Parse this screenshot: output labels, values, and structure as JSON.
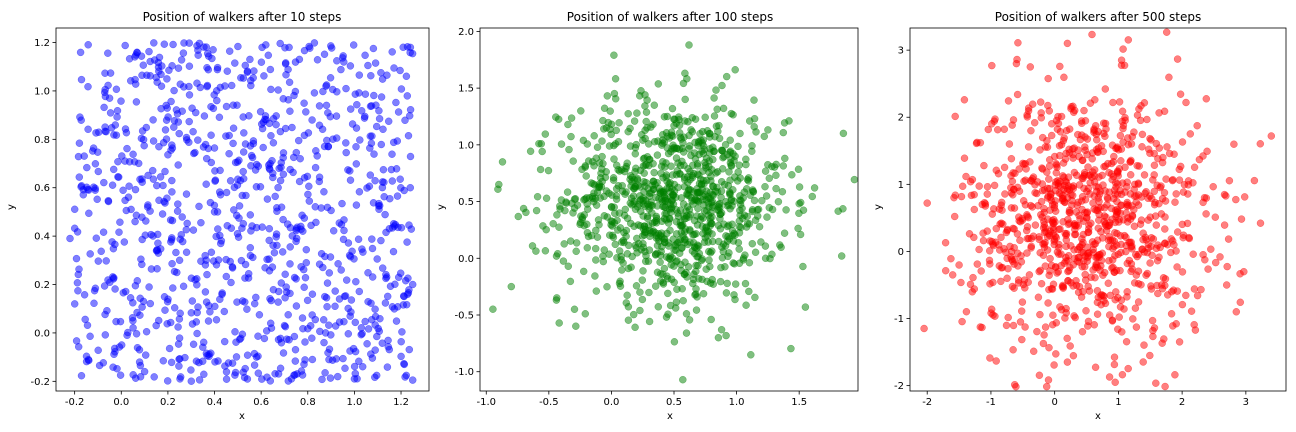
{
  "chart_data": [
    {
      "type": "scatter",
      "title": "Position of walkers after 10 steps",
      "xlabel": "x",
      "ylabel": "y",
      "xlim": [
        -0.28,
        1.32
      ],
      "ylim": [
        -0.24,
        1.26
      ],
      "xticks": [
        "-0.2",
        "0.0",
        "0.2",
        "0.4",
        "0.6",
        "0.8",
        "1.0",
        "1.2"
      ],
      "xtick_values": [
        -0.2,
        0.0,
        0.2,
        0.4,
        0.6,
        0.8,
        1.0,
        1.2
      ],
      "yticks": [
        "-0.2",
        "0.0",
        "0.2",
        "0.4",
        "0.6",
        "0.8",
        "1.0",
        "1.2"
      ],
      "ytick_values": [
        -0.2,
        0.0,
        0.2,
        0.4,
        0.6,
        0.8,
        1.0,
        1.2
      ],
      "color": "#0000ff",
      "alpha": 0.5,
      "grid": false,
      "n_points": 1000,
      "distribution": {
        "kind": "uniform",
        "x_range": [
          -0.2,
          1.25
        ],
        "y_range": [
          -0.2,
          1.2
        ]
      },
      "points": [
        [
          0.05,
          0.05
        ],
        [
          1.25,
          0.2
        ],
        [
          -0.22,
          0.39
        ],
        [
          0.62,
          1.19
        ],
        [
          0.72,
          1.18
        ],
        [
          1.24,
          0.6
        ],
        [
          -0.05,
          0.97
        ],
        [
          0.1,
          -0.16
        ],
        [
          0.73,
          -0.19
        ],
        [
          1.0,
          -0.19
        ],
        [
          -0.2,
          0.12
        ],
        [
          1.19,
          0.23
        ],
        [
          0.58,
          -0.1
        ],
        [
          0.82,
          0.16
        ],
        [
          0.25,
          0.3
        ],
        [
          0.4,
          0.5
        ]
      ]
    },
    {
      "type": "scatter",
      "title": "Position of walkers after 100 steps",
      "xlabel": "x",
      "ylabel": "y",
      "xlim": [
        -1.05,
        1.97
      ],
      "ylim": [
        -1.17,
        2.03
      ],
      "xticks": [
        "-1.0",
        "-0.5",
        "0.0",
        "0.5",
        "1.0",
        "1.5"
      ],
      "xtick_values": [
        -1.0,
        -0.5,
        0.0,
        0.5,
        1.0,
        1.5
      ],
      "yticks": [
        "-1.0",
        "-0.5",
        "0.0",
        "0.5",
        "1.0",
        "1.5",
        "2.0"
      ],
      "ytick_values": [
        -1.0,
        -0.5,
        0.0,
        0.5,
        1.0,
        1.5,
        2.0
      ],
      "color": "#008000",
      "alpha": 0.5,
      "grid": false,
      "n_points": 1000,
      "distribution": {
        "kind": "normal",
        "mean": [
          0.5,
          0.5
        ],
        "std": [
          0.45,
          0.45
        ]
      },
      "points": [
        [
          0.62,
          1.88
        ],
        [
          0.02,
          1.79
        ],
        [
          0.57,
          -1.07
        ],
        [
          1.84,
          0.02
        ],
        [
          -0.9,
          0.65
        ],
        [
          -0.87,
          0.85
        ],
        [
          -0.8,
          -0.25
        ],
        [
          1.55,
          -0.43
        ],
        [
          0.88,
          -0.63
        ],
        [
          0.6,
          -0.66
        ],
        [
          0.45,
          0.5
        ]
      ]
    },
    {
      "type": "scatter",
      "title": "Position of walkers after 500 steps",
      "xlabel": "x",
      "ylabel": "y",
      "xlim": [
        -2.27,
        3.63
      ],
      "ylim": [
        -2.08,
        3.33
      ],
      "xticks": [
        "-2",
        "-1",
        "0",
        "1",
        "2",
        "3"
      ],
      "xtick_values": [
        -2,
        -1,
        0,
        1,
        2,
        3
      ],
      "yticks": [
        "-2",
        "-1",
        "0",
        "1",
        "2",
        "3"
      ],
      "ytick_values": [
        -2,
        -1,
        0,
        1,
        2,
        3
      ],
      "color": "#ff0000",
      "alpha": 0.5,
      "grid": false,
      "n_points": 1000,
      "distribution": {
        "kind": "normal",
        "mean": [
          0.5,
          0.5
        ],
        "std": [
          0.95,
          0.95
        ]
      },
      "points": [
        [
          0.2,
          3.1
        ],
        [
          3.4,
          1.72
        ],
        [
          -2.0,
          0.72
        ],
        [
          0.95,
          -1.95
        ],
        [
          0.2,
          -1.65
        ],
        [
          1.05,
          2.85
        ],
        [
          2.7,
          -0.5
        ],
        [
          -0.6,
          2.8
        ],
        [
          -1.6,
          -0.35
        ],
        [
          2.85,
          -0.9
        ],
        [
          0.5,
          0.5
        ]
      ]
    }
  ]
}
